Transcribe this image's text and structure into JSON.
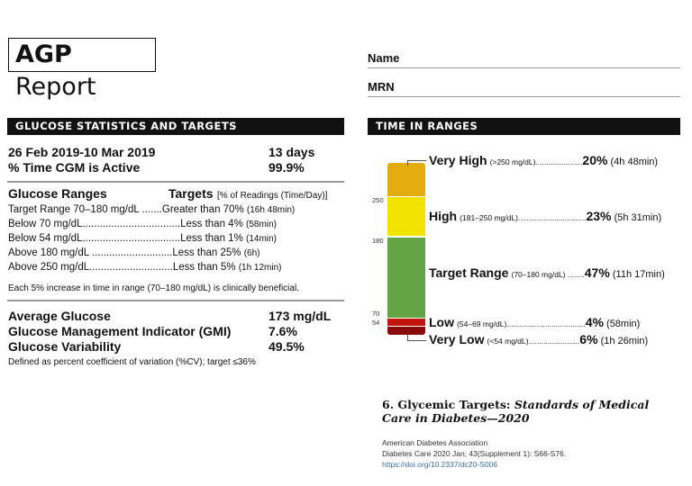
{
  "title": {
    "bold": "AGP",
    "rest": " Report"
  },
  "patient": {
    "name_label": "Name",
    "mrn_label": "MRN"
  },
  "stats": {
    "header": "GLUCOSE STATISTICS AND TARGETS",
    "date_range": "26 Feb 2019-10 Mar 2019",
    "days": "13 days",
    "cgm_label": "% Time CGM is Active",
    "cgm_value": "99.9%",
    "ranges_heading": "Glucose Ranges",
    "targets_heading": "Targets",
    "targets_note": "[% of Readings (Time/Day)]",
    "rows": [
      {
        "range": "Target Range 70–180 mg/dL .......",
        "target": "Greater than 70%",
        "time": "(16h 48min)"
      },
      {
        "range": "Below 70 mg/dL..................................",
        "target": "Less than 4%",
        "time": "(58min)"
      },
      {
        "range": "Below 54 mg/dL..................................",
        "target": "Less than 1%",
        "time": "(14min)"
      },
      {
        "range": "Above 180 mg/dL ............................",
        "target": "Less than 25%",
        "time": "(6h)"
      },
      {
        "range": "Above 250 mg/dL.............................",
        "target": "Less than 5%",
        "time": "(1h 12min)"
      }
    ],
    "footnote": "Each 5% increase in time in range (70–180 mg/dL) is clinically beneficial.",
    "avg_label": "Average Glucose",
    "avg_value": "173 mg/dL",
    "gmi_label": "Glucose Management Indicator (GMI)",
    "gmi_value": "7.6%",
    "gv_label": "Glucose Variability",
    "gv_value": "49.5%",
    "gv_note": "Defined as percent coefficient of variation (%CV); target ≤36%"
  },
  "tir": {
    "header": "TIME IN RANGES",
    "ticks": [
      "250",
      "180",
      "70",
      "54"
    ],
    "ranges": [
      {
        "name": "Very High",
        "range": "(>250 mg/dL)......................",
        "pct": "20%",
        "time": "(4h 48min)",
        "color": "#e3ad0f"
      },
      {
        "name": "High",
        "range": "(181–250 mg/dL)................................",
        "pct": "23%",
        "time": "(5h 31min)",
        "color": "#f2e400"
      },
      {
        "name": "Target Range",
        "range": "(70–180 mg/dL) ........",
        "pct": "47%",
        "time": "(11h 17min)",
        "color": "#63a544"
      },
      {
        "name": "Low",
        "range": "(54–69 mg/dL).....................................",
        "pct": "4%",
        "time": "(58min)",
        "color": "#c4150d"
      },
      {
        "name": "Very Low",
        "range": "(<54 mg/dL)........................",
        "pct": "6%",
        "time": "(1h 26min)",
        "color": "#8b0a0a"
      }
    ]
  },
  "citation": {
    "title_plain": "6. Glycemic Targets: ",
    "title_italic": "Standards of Medical Care in Diabetes—2020",
    "author": "American Diabetes Association",
    "journal": "Diabetes Care 2020 Jan; 43(Supplement 1): S66-S76.",
    "doi": "https://doi.org/10.2337/dc20-S006",
    "link_color": "#3a6fa8"
  }
}
